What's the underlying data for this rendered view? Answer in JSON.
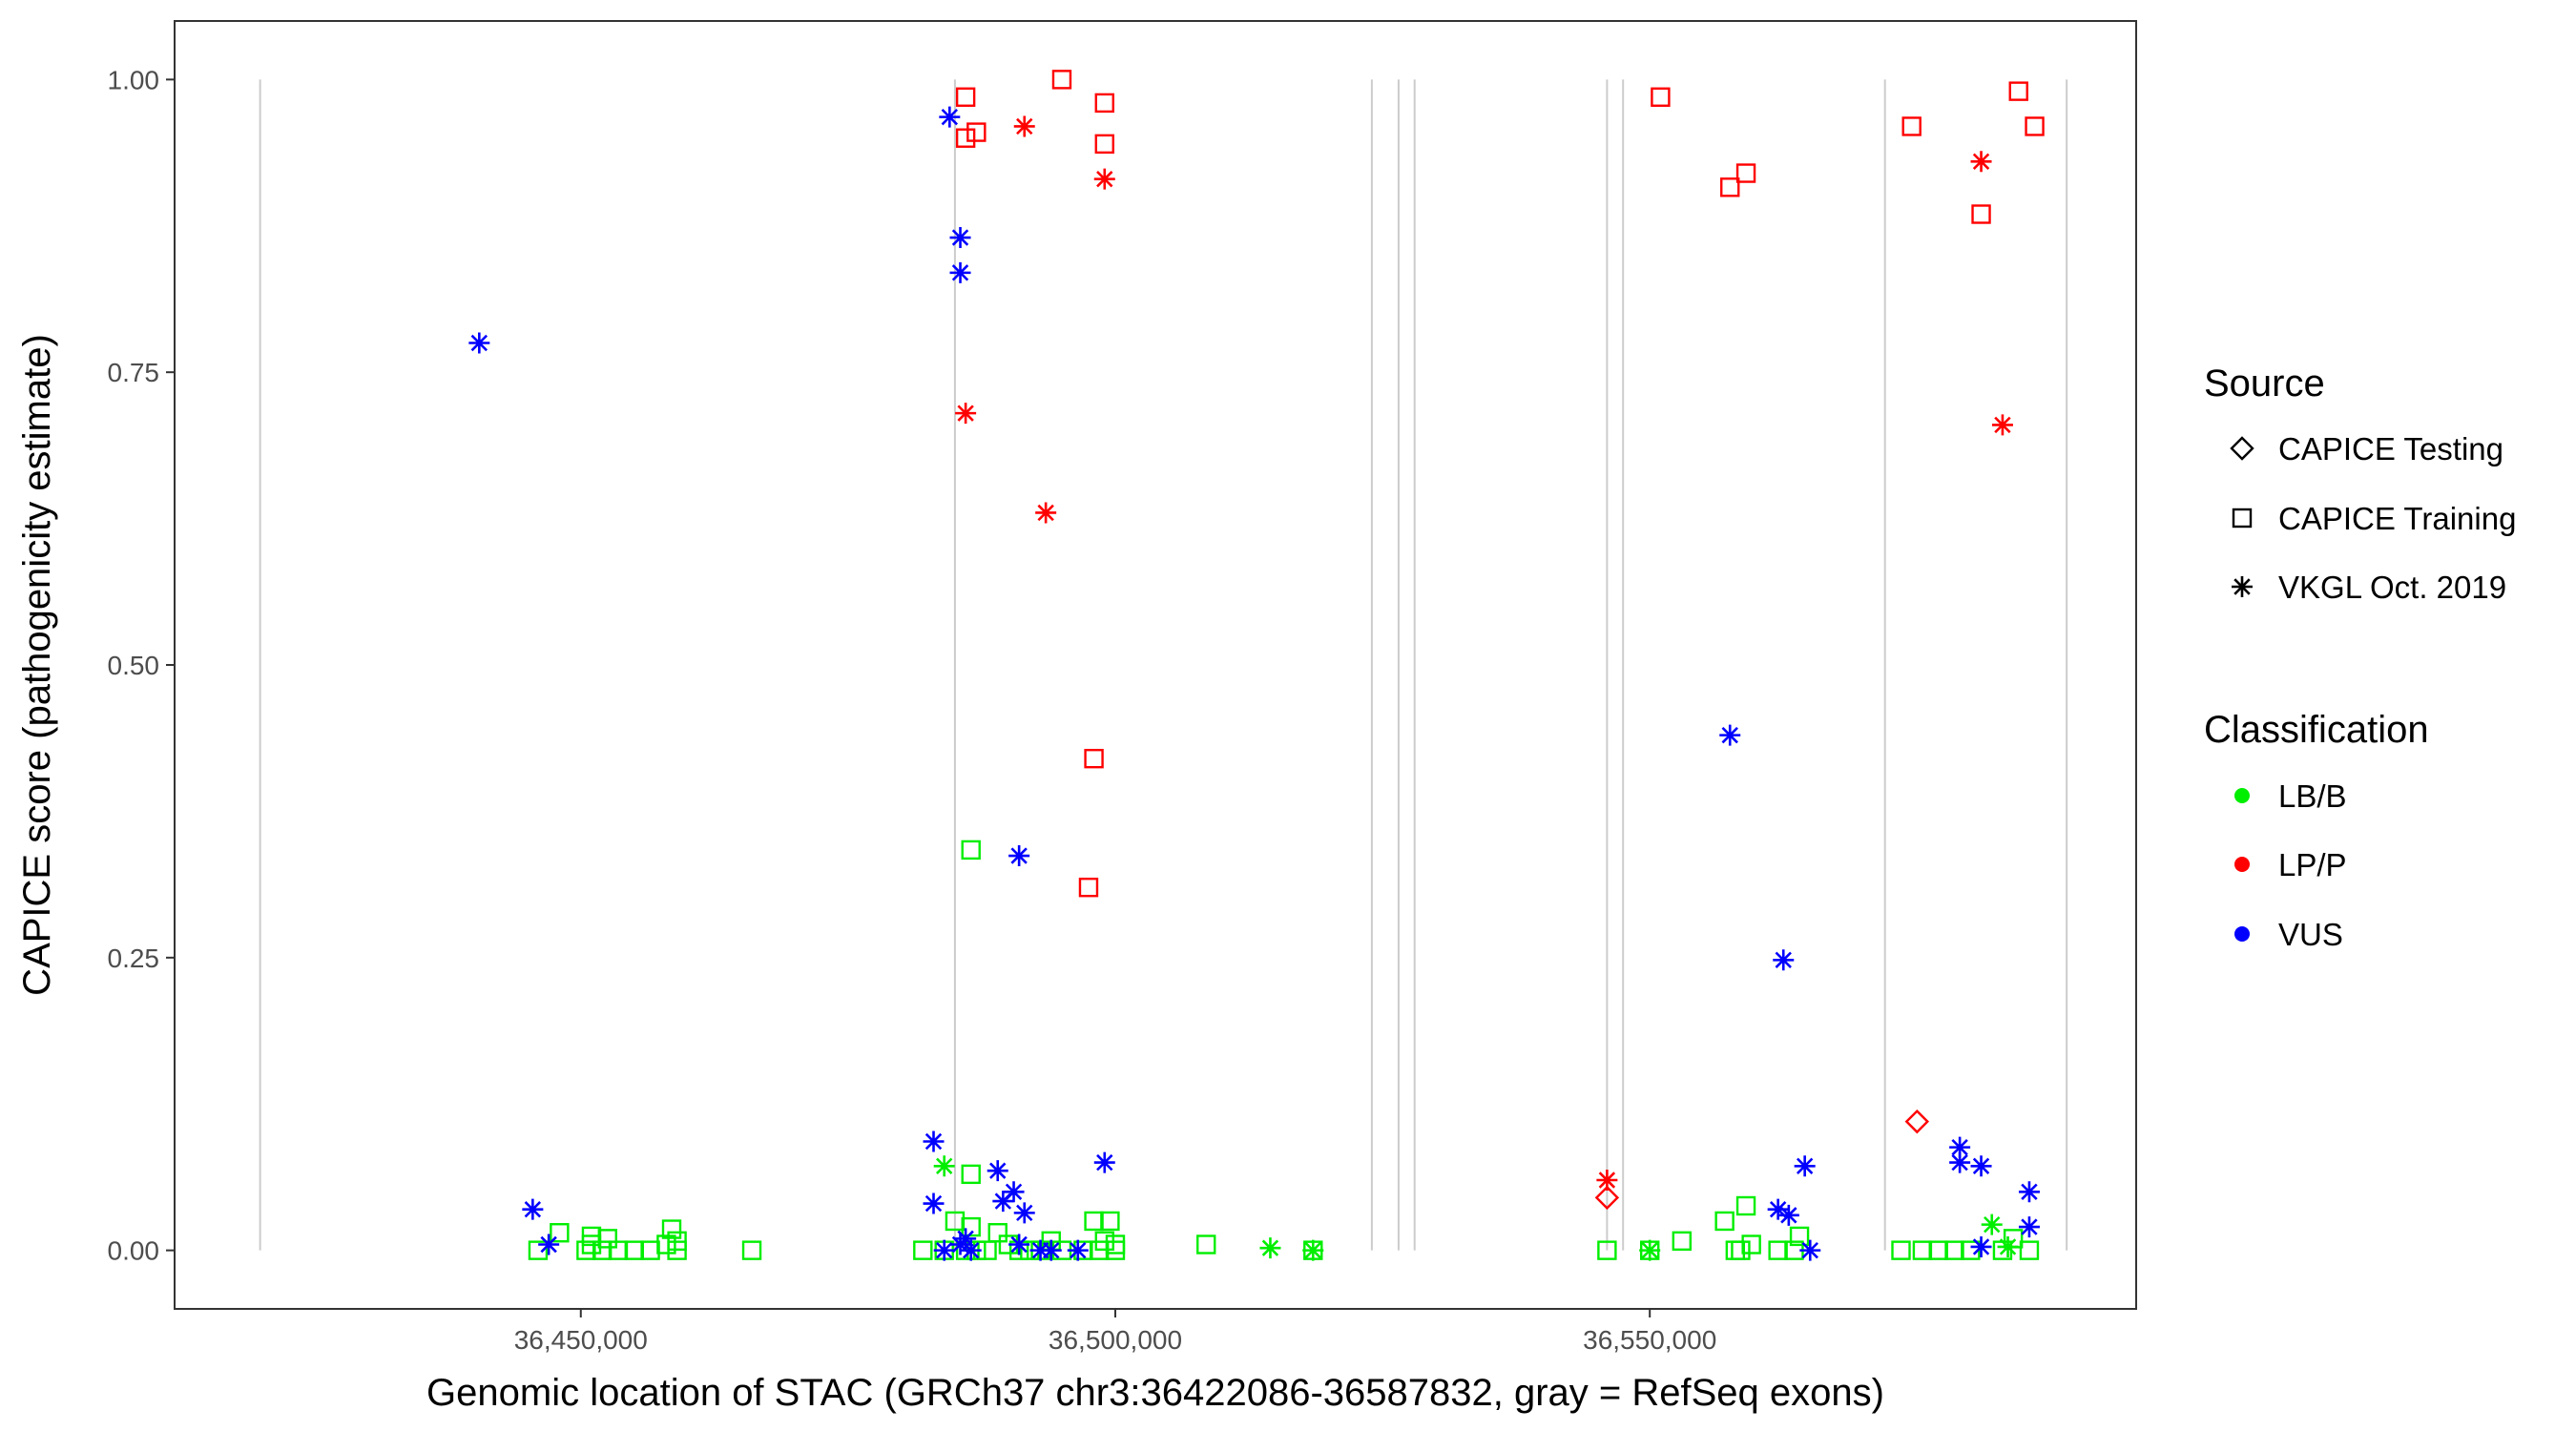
{
  "chart_data": {
    "type": "scatter",
    "title": "",
    "xlabel": "Genomic location of STAC (GRCh37 chr3:36422086-36587832, gray = RefSeq exons)",
    "ylabel": "CAPICE score (pathogenicity estimate)",
    "xlim": [
      36412000,
      36595500
    ],
    "ylim": [
      -0.05,
      1.05
    ],
    "x_ticks": [
      36450000,
      36500000,
      36550000
    ],
    "x_tick_labels": [
      "36,450,000",
      "36,500,000",
      "36,550,000"
    ],
    "y_ticks": [
      0,
      0.25,
      0.5,
      0.75,
      1.0
    ],
    "y_tick_labels": [
      "0.00",
      "0.25",
      "0.50",
      "0.75",
      "1.00"
    ],
    "grid": false,
    "exon_lines_x": [
      36420000,
      36485000,
      36524000,
      36526500,
      36528000,
      36546000,
      36547500,
      36572000,
      36589000
    ],
    "legend": {
      "position": "right",
      "source_title": "Source",
      "source_entries": [
        {
          "key": "testing",
          "label": "CAPICE Testing",
          "shape": "diamond"
        },
        {
          "key": "training",
          "label": "CAPICE Training",
          "shape": "square"
        },
        {
          "key": "vkgl",
          "label": "VKGL Oct. 2019",
          "shape": "asterisk"
        }
      ],
      "class_title": "Classification",
      "class_entries": [
        {
          "key": "LB/B",
          "label": "LB/B",
          "color": "#00ee00"
        },
        {
          "key": "LP/P",
          "label": "LP/P",
          "color": "#ff0000"
        },
        {
          "key": "VUS",
          "label": "VUS",
          "color": "#0000ff"
        }
      ]
    },
    "series": [
      {
        "name": "CAPICE Training LP/P",
        "source": "training",
        "class": "LP/P",
        "points": [
          [
            36486000,
            0.985
          ],
          [
            36495000,
            1.0
          ],
          [
            36499000,
            0.98
          ],
          [
            36486000,
            0.95
          ],
          [
            36487000,
            0.955
          ],
          [
            36499000,
            0.945
          ],
          [
            36498000,
            0.42
          ],
          [
            36497500,
            0.31
          ],
          [
            36551000,
            0.985
          ],
          [
            36557500,
            0.908
          ],
          [
            36559000,
            0.92
          ],
          [
            36574500,
            0.96
          ],
          [
            36584500,
            0.99
          ],
          [
            36586000,
            0.96
          ],
          [
            36581000,
            0.885
          ]
        ]
      },
      {
        "name": "CAPICE Training LB/B",
        "source": "training",
        "class": "LB/B",
        "points": [
          [
            36446000,
            0.0
          ],
          [
            36448000,
            0.015
          ],
          [
            36450500,
            0.0
          ],
          [
            36451000,
            0.012
          ],
          [
            36451000,
            0.005
          ],
          [
            36452000,
            0.0
          ],
          [
            36452500,
            0.01
          ],
          [
            36453500,
            0.0
          ],
          [
            36455000,
            0.0
          ],
          [
            36456500,
            0.0
          ],
          [
            36458000,
            0.005
          ],
          [
            36458500,
            0.018
          ],
          [
            36459000,
            0.008
          ],
          [
            36459000,
            0.0
          ],
          [
            36466000,
            0.0
          ],
          [
            36482000,
            0.0
          ],
          [
            36484000,
            0.0
          ],
          [
            36485000,
            0.025
          ],
          [
            36486000,
            0.0
          ],
          [
            36486500,
            0.02
          ],
          [
            36486500,
            0.065
          ],
          [
            36487000,
            0.0
          ],
          [
            36488000,
            0.0
          ],
          [
            36489000,
            0.015
          ],
          [
            36490000,
            0.005
          ],
          [
            36491000,
            0.0
          ],
          [
            36492000,
            0.0
          ],
          [
            36493000,
            0.0
          ],
          [
            36494000,
            0.008
          ],
          [
            36495000,
            0.0
          ],
          [
            36497000,
            0.0
          ],
          [
            36498000,
            0.025
          ],
          [
            36498500,
            0.0
          ],
          [
            36499000,
            0.008
          ],
          [
            36499500,
            0.025
          ],
          [
            36500000,
            0.0
          ],
          [
            36500000,
            0.005
          ],
          [
            36486500,
            0.342
          ],
          [
            36508500,
            0.005
          ],
          [
            36518500,
            0.0
          ],
          [
            36546000,
            0.0
          ],
          [
            36550000,
            0.0
          ],
          [
            36553000,
            0.008
          ],
          [
            36557000,
            0.025
          ],
          [
            36558000,
            0.0
          ],
          [
            36558500,
            0.0
          ],
          [
            36559000,
            0.038
          ],
          [
            36559500,
            0.005
          ],
          [
            36562000,
            0.0
          ],
          [
            36563500,
            0.0
          ],
          [
            36564000,
            0.012
          ],
          [
            36573500,
            0.0
          ],
          [
            36575500,
            0.0
          ],
          [
            36577000,
            0.0
          ],
          [
            36578500,
            0.0
          ],
          [
            36580000,
            0.0
          ],
          [
            36583000,
            0.0
          ],
          [
            36584000,
            0.01
          ],
          [
            36585500,
            0.0
          ]
        ]
      },
      {
        "name": "CAPICE Testing LP/P",
        "source": "testing",
        "class": "LP/P",
        "points": [
          [
            36546000,
            0.045
          ],
          [
            36575000,
            0.11
          ]
        ]
      },
      {
        "name": "VKGL LP/P",
        "source": "vkgl",
        "class": "LP/P",
        "points": [
          [
            36491500,
            0.96
          ],
          [
            36499000,
            0.915
          ],
          [
            36486000,
            0.715
          ],
          [
            36493500,
            0.63
          ],
          [
            36546000,
            0.06
          ],
          [
            36581000,
            0.93
          ],
          [
            36583000,
            0.705
          ]
        ]
      },
      {
        "name": "VKGL VUS",
        "source": "vkgl",
        "class": "VUS",
        "points": [
          [
            36484500,
            0.968
          ],
          [
            36485500,
            0.865
          ],
          [
            36485500,
            0.835
          ],
          [
            36440500,
            0.775
          ],
          [
            36491000,
            0.337
          ],
          [
            36445500,
            0.035
          ],
          [
            36447000,
            0.005
          ],
          [
            36483000,
            0.093
          ],
          [
            36483000,
            0.04
          ],
          [
            36484000,
            0.0
          ],
          [
            36485500,
            0.005
          ],
          [
            36486000,
            0.01
          ],
          [
            36486500,
            0.0
          ],
          [
            36489000,
            0.068
          ],
          [
            36489500,
            0.042
          ],
          [
            36490500,
            0.05
          ],
          [
            36491500,
            0.032
          ],
          [
            36491000,
            0.005
          ],
          [
            36493000,
            0.0
          ],
          [
            36494000,
            0.0
          ],
          [
            36496500,
            0.0
          ],
          [
            36499000,
            0.075
          ],
          [
            36557500,
            0.44
          ],
          [
            36562500,
            0.248
          ],
          [
            36562000,
            0.035
          ],
          [
            36563000,
            0.03
          ],
          [
            36564500,
            0.072
          ],
          [
            36565000,
            0.0
          ],
          [
            36579000,
            0.088
          ],
          [
            36579000,
            0.075
          ],
          [
            36581000,
            0.072
          ],
          [
            36581000,
            0.003
          ],
          [
            36585500,
            0.05
          ],
          [
            36585500,
            0.02
          ]
        ]
      },
      {
        "name": "VKGL LB/B",
        "source": "vkgl",
        "class": "LB/B",
        "points": [
          [
            36484000,
            0.072
          ],
          [
            36514500,
            0.002
          ],
          [
            36518500,
            0.0
          ],
          [
            36550000,
            0.0
          ],
          [
            36582000,
            0.022
          ],
          [
            36583500,
            0.003
          ]
        ]
      }
    ]
  }
}
